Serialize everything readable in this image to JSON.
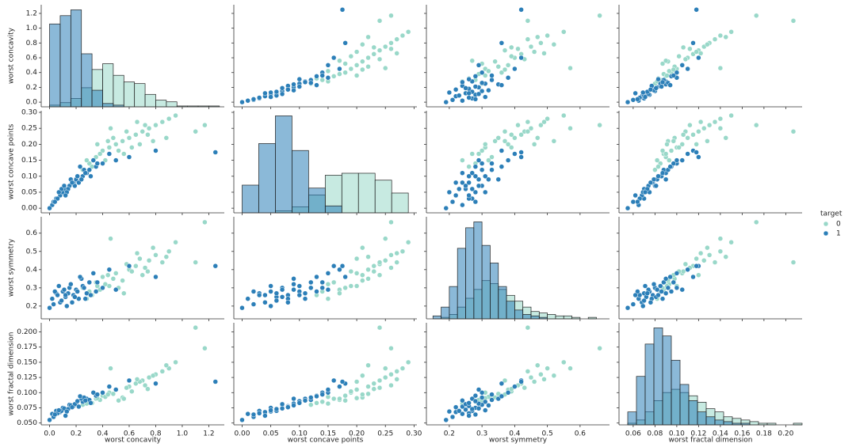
{
  "chart_data": {
    "type": "pairplot",
    "variables": [
      "worst concavity",
      "worst concave points",
      "worst symmetry",
      "worst fractal dimension"
    ],
    "legend_title": "target",
    "axes": [
      {
        "xlim": [
          -0.063,
          1.317
        ],
        "ylim": [
          -0.063,
          1.317
        ],
        "xticks": [
          {
            "value": 0,
            "label": "0.0"
          },
          0.2,
          0.4,
          0.6,
          0.8,
          {
            "value": 1,
            "label": "1.0"
          },
          1.2
        ],
        "yticks": [
          {
            "value": 0,
            "label": "0.0"
          },
          0.2,
          0.4,
          0.6,
          0.8,
          {
            "value": 1,
            "label": "1.0"
          },
          1.2
        ]
      },
      {
        "xlim": [
          -0.0145,
          0.305
        ],
        "ylim": [
          -0.0145,
          0.305
        ],
        "xticks": [
          {
            "value": 0,
            "label": "0.00"
          },
          0.05,
          {
            "value": 0.1,
            "label": "0.10"
          },
          0.15,
          {
            "value": 0.2,
            "label": "0.20"
          },
          0.25,
          {
            "value": 0.3,
            "label": "0.30"
          }
        ],
        "yticks": [
          {
            "value": 0,
            "label": "0.00"
          },
          0.05,
          {
            "value": 0.1,
            "label": "0.10"
          },
          0.15,
          {
            "value": 0.2,
            "label": "0.20"
          },
          0.25,
          {
            "value": 0.3,
            "label": "0.30"
          }
        ]
      },
      {
        "xlim": [
          0.13,
          0.69
        ],
        "ylim": [
          0.13,
          0.69
        ],
        "xticks": [
          0.2,
          0.3,
          0.4,
          0.5,
          0.6
        ],
        "yticks": [
          0.2,
          0.3,
          0.4,
          0.5,
          0.6
        ]
      },
      {
        "xlim": [
          0.047,
          0.215
        ],
        "ylim": [
          0.047,
          0.215
        ],
        "xticks": [
          0.06,
          0.08,
          {
            "value": 0.1,
            "label": "0.10"
          },
          0.12,
          0.14,
          0.16,
          0.18,
          {
            "value": 0.2,
            "label": "0.20"
          }
        ],
        "yticks": [
          {
            "value": 0.05,
            "label": "0.050"
          },
          0.075,
          {
            "value": 0.1,
            "label": "0.100"
          },
          0.125,
          {
            "value": 0.15,
            "label": "0.150"
          },
          0.175,
          {
            "value": 0.2,
            "label": "0.200"
          }
        ]
      }
    ],
    "series": [
      {
        "name": "0",
        "color": "#99d8c9",
        "points": [
          [
            0.25,
            0.12,
            0.3,
            0.08
          ],
          [
            0.3,
            0.14,
            0.28,
            0.085
          ],
          [
            0.35,
            0.16,
            0.33,
            0.09
          ],
          [
            0.4,
            0.18,
            0.36,
            0.095
          ],
          [
            0.45,
            0.19,
            0.31,
            0.1
          ],
          [
            0.5,
            0.2,
            0.38,
            0.105
          ],
          [
            0.55,
            0.21,
            0.34,
            0.092
          ],
          [
            0.6,
            0.22,
            0.4,
            0.11
          ],
          [
            0.65,
            0.23,
            0.42,
            0.115
          ],
          [
            0.7,
            0.24,
            0.37,
            0.12
          ],
          [
            0.75,
            0.25,
            0.45,
            0.125
          ],
          [
            0.8,
            0.26,
            0.48,
            0.13
          ],
          [
            0.85,
            0.27,
            0.44,
            0.135
          ],
          [
            0.9,
            0.28,
            0.5,
            0.14
          ],
          [
            0.38,
            0.17,
            0.29,
            0.088
          ],
          [
            0.42,
            0.15,
            0.32,
            0.093
          ],
          [
            0.48,
            0.22,
            0.35,
            0.098
          ],
          [
            0.52,
            0.18,
            0.3,
            0.087
          ],
          [
            0.58,
            0.24,
            0.43,
            0.108
          ],
          [
            0.62,
            0.19,
            0.39,
            0.102
          ],
          [
            0.68,
            0.2,
            0.46,
            0.118
          ],
          [
            0.72,
            0.26,
            0.41,
            0.112
          ],
          [
            0.78,
            0.21,
            0.52,
            0.128
          ],
          [
            0.88,
            0.22,
            0.47,
            0.145
          ],
          [
            0.95,
            0.29,
            0.55,
            0.15
          ],
          [
            1.1,
            0.24,
            0.44,
            0.207
          ],
          [
            1.17,
            0.26,
            0.66,
            0.173
          ],
          [
            0.32,
            0.13,
            0.26,
            0.083
          ],
          [
            0.44,
            0.21,
            0.37,
            0.097
          ],
          [
            0.56,
            0.17,
            0.27,
            0.09
          ],
          [
            0.66,
            0.27,
            0.49,
            0.122
          ],
          [
            0.74,
            0.23,
            0.39,
            0.106
          ],
          [
            0.46,
            0.25,
            0.57,
            0.14
          ],
          [
            0.36,
            0.2,
            0.31,
            0.091
          ],
          [
            0.28,
            0.15,
            0.24,
            0.082
          ]
        ]
      },
      {
        "name": "1",
        "color": "#2c7fb8",
        "points": [
          [
            0.02,
            0.01,
            0.24,
            0.065
          ],
          [
            0.05,
            0.03,
            0.27,
            0.07
          ],
          [
            0.08,
            0.04,
            0.22,
            0.068
          ],
          [
            0.1,
            0.05,
            0.28,
            0.075
          ],
          [
            0.12,
            0.06,
            0.25,
            0.072
          ],
          [
            0.15,
            0.07,
            0.3,
            0.08
          ],
          [
            0.18,
            0.08,
            0.26,
            0.078
          ],
          [
            0.2,
            0.09,
            0.29,
            0.082
          ],
          [
            0.22,
            0.08,
            0.24,
            0.077
          ],
          [
            0.25,
            0.1,
            0.31,
            0.085
          ],
          [
            0.28,
            0.11,
            0.27,
            0.09
          ],
          [
            0.3,
            0.12,
            0.33,
            0.088
          ],
          [
            0.35,
            0.13,
            0.28,
            0.095
          ],
          [
            0.4,
            0.14,
            0.3,
            0.1
          ],
          [
            0.0,
            0.0,
            0.19,
            0.055
          ],
          [
            0.03,
            0.02,
            0.21,
            0.06
          ],
          [
            0.06,
            0.03,
            0.26,
            0.066
          ],
          [
            0.09,
            0.06,
            0.23,
            0.07
          ],
          [
            0.11,
            0.07,
            0.29,
            0.074
          ],
          [
            0.14,
            0.06,
            0.27,
            0.073
          ],
          [
            0.16,
            0.09,
            0.32,
            0.079
          ],
          [
            0.19,
            0.07,
            0.25,
            0.081
          ],
          [
            0.21,
            0.1,
            0.28,
            0.086
          ],
          [
            0.24,
            0.09,
            0.35,
            0.09
          ],
          [
            0.26,
            0.12,
            0.3,
            0.092
          ],
          [
            0.33,
            0.15,
            0.38,
            0.1
          ],
          [
            0.45,
            0.17,
            0.4,
            0.11
          ],
          [
            0.6,
            0.16,
            0.42,
            0.12
          ],
          [
            0.8,
            0.18,
            0.36,
            0.115
          ],
          [
            1.25,
            0.175,
            0.42,
            0.118
          ],
          [
            0.13,
            0.05,
            0.2,
            0.069
          ],
          [
            0.17,
            0.08,
            0.22,
            0.076
          ],
          [
            0.07,
            0.05,
            0.31,
            0.071
          ],
          [
            0.04,
            0.02,
            0.28,
            0.064
          ],
          [
            0.27,
            0.11,
            0.24,
            0.087
          ],
          [
            0.31,
            0.1,
            0.26,
            0.083
          ],
          [
            0.36,
            0.14,
            0.33,
            0.097
          ],
          [
            0.5,
            0.15,
            0.29,
            0.105
          ],
          [
            0.12,
            0.04,
            0.26,
            0.062
          ],
          [
            0.23,
            0.13,
            0.36,
            0.094
          ]
        ]
      }
    ],
    "histograms": [
      {
        "bins": [
          0,
          0.08,
          0.16,
          0.24,
          0.32,
          0.4,
          0.48,
          0.56,
          0.64,
          0.72,
          0.8,
          0.88,
          0.96,
          1.04,
          1.12,
          1.2,
          1.28
        ],
        "counts": [
          [
            2,
            5,
            10,
            23,
            45,
            52,
            38,
            30,
            28,
            15,
            8,
            6,
            1,
            1,
            1,
            1
          ],
          [
            100,
            110,
            117,
            64,
            20,
            4,
            2,
            0,
            0,
            0,
            0,
            0,
            0,
            0,
            0,
            0
          ]
        ]
      },
      {
        "bins": [
          0,
          0.029,
          0.058,
          0.087,
          0.116,
          0.145,
          0.174,
          0.203,
          0.232,
          0.261,
          0.29
        ],
        "counts": [
          [
            0,
            0,
            2,
            6,
            18,
            38,
            40,
            40,
            33,
            20
          ],
          [
            28,
            70,
            98,
            63,
            25,
            7,
            0,
            0,
            0,
            0
          ]
        ]
      },
      {
        "bins": [
          0.15,
          0.175,
          0.2,
          0.225,
          0.25,
          0.275,
          0.3,
          0.325,
          0.35,
          0.375,
          0.4,
          0.425,
          0.45,
          0.475,
          0.5,
          0.525,
          0.55,
          0.575,
          0.6,
          0.625,
          0.65,
          0.675
        ],
        "counts": [
          [
            0,
            1,
            3,
            8,
            14,
            20,
            26,
            24,
            20,
            16,
            12,
            8,
            5,
            4,
            3,
            2,
            2,
            1,
            0,
            1,
            0
          ],
          [
            2,
            8,
            22,
            48,
            62,
            66,
            50,
            38,
            22,
            12,
            6,
            3,
            2,
            1,
            0,
            0,
            0,
            0,
            0,
            0,
            0
          ]
        ]
      },
      {
        "bins": [
          0.055,
          0.063,
          0.071,
          0.079,
          0.087,
          0.095,
          0.103,
          0.111,
          0.119,
          0.127,
          0.135,
          0.143,
          0.151,
          0.159,
          0.167,
          0.175,
          0.183,
          0.191,
          0.199,
          0.207,
          0.215
        ],
        "counts": [
          [
            1,
            3,
            8,
            15,
            20,
            22,
            20,
            18,
            14,
            10,
            8,
            5,
            4,
            3,
            2,
            1,
            1,
            0,
            0,
            1
          ],
          [
            8,
            30,
            50,
            60,
            55,
            40,
            25,
            15,
            8,
            5,
            3,
            2,
            1,
            1,
            0,
            0,
            0,
            0,
            0,
            0
          ]
        ]
      }
    ]
  }
}
